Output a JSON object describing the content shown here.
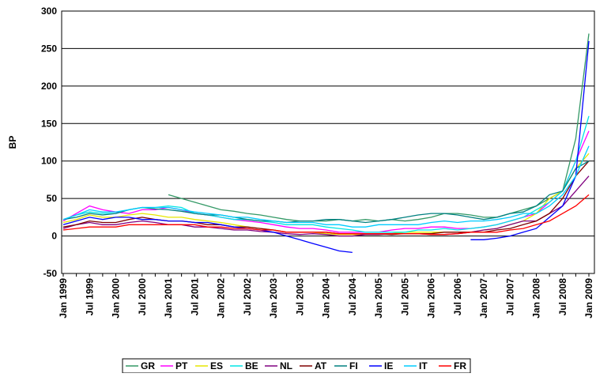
{
  "chart_data": {
    "type": "line",
    "y_label": "BP",
    "categories": [
      "Jan 1999",
      null,
      "Jul 1999",
      null,
      "Jan 2000",
      null,
      "Jul 2000",
      null,
      "Jan 2001",
      null,
      "Jul 2001",
      null,
      "Jan 2002",
      null,
      "Jul 2002",
      null,
      "Jan 2003",
      null,
      "Jul 2003",
      null,
      "Jan 2004",
      null,
      "Jul 2004",
      null,
      "Jan 2005",
      null,
      "Jul 2005",
      null,
      "Jan 2006",
      null,
      "Jul 2006",
      null,
      "Jan 2007",
      null,
      "Jul 2007",
      null,
      "Jan 2008",
      null,
      "Jul 2008",
      null,
      "Jan 2009"
    ],
    "ylim": [
      -50,
      300
    ],
    "yticks": [
      -50,
      0,
      50,
      100,
      150,
      200,
      250,
      300
    ],
    "grid": true,
    "series": [
      {
        "name": "GR",
        "color": "#339966",
        "values": [
          null,
          null,
          null,
          null,
          null,
          null,
          null,
          null,
          55,
          50,
          45,
          40,
          35,
          33,
          30,
          28,
          25,
          22,
          20,
          20,
          20,
          22,
          20,
          22,
          20,
          22,
          20,
          22,
          25,
          30,
          30,
          28,
          25,
          25,
          30,
          35,
          40,
          50,
          60,
          130,
          270
        ]
      },
      {
        "name": "PT",
        "color": "#ff00ff",
        "values": [
          20,
          30,
          40,
          35,
          32,
          30,
          35,
          35,
          38,
          35,
          30,
          28,
          25,
          22,
          20,
          18,
          15,
          12,
          10,
          10,
          8,
          5,
          5,
          5,
          5,
          8,
          10,
          10,
          12,
          12,
          10,
          10,
          12,
          15,
          20,
          25,
          30,
          45,
          60,
          100,
          140
        ]
      },
      {
        "name": "ES",
        "color": "#e6e600",
        "values": [
          18,
          22,
          28,
          25,
          25,
          28,
          30,
          28,
          25,
          25,
          22,
          20,
          18,
          15,
          12,
          10,
          8,
          5,
          5,
          5,
          3,
          2,
          2,
          2,
          2,
          3,
          5,
          5,
          5,
          5,
          5,
          5,
          8,
          10,
          15,
          20,
          30,
          50,
          60,
          90,
          110
        ]
      },
      {
        "name": "BE",
        "color": "#00e5e5",
        "values": [
          22,
          28,
          32,
          30,
          30,
          35,
          38,
          38,
          40,
          38,
          30,
          28,
          25,
          22,
          22,
          20,
          18,
          15,
          15,
          15,
          12,
          10,
          8,
          5,
          5,
          5,
          5,
          8,
          8,
          10,
          8,
          10,
          12,
          15,
          20,
          25,
          35,
          45,
          60,
          100,
          160
        ]
      },
      {
        "name": "NL",
        "color": "#800080",
        "values": [
          10,
          15,
          18,
          15,
          15,
          18,
          20,
          18,
          15,
          15,
          12,
          12,
          10,
          8,
          8,
          6,
          5,
          3,
          2,
          3,
          2,
          0,
          0,
          2,
          2,
          3,
          3,
          3,
          2,
          2,
          3,
          5,
          8,
          10,
          15,
          20,
          20,
          30,
          40,
          60,
          80
        ]
      },
      {
        "name": "AT",
        "color": "#800000",
        "values": [
          12,
          15,
          20,
          18,
          18,
          22,
          25,
          22,
          20,
          20,
          18,
          15,
          15,
          12,
          12,
          10,
          8,
          5,
          5,
          5,
          5,
          3,
          3,
          3,
          3,
          2,
          3,
          3,
          3,
          5,
          5,
          5,
          5,
          8,
          10,
          15,
          20,
          30,
          50,
          80,
          100
        ]
      },
      {
        "name": "FI",
        "color": "#008080",
        "values": [
          22,
          25,
          30,
          28,
          30,
          35,
          38,
          36,
          35,
          33,
          30,
          28,
          28,
          25,
          22,
          20,
          20,
          18,
          20,
          20,
          22,
          22,
          20,
          18,
          20,
          22,
          25,
          28,
          30,
          30,
          28,
          25,
          22,
          25,
          30,
          32,
          40,
          55,
          60,
          90,
          100
        ]
      },
      {
        "name": "IE",
        "color": "#0000ff",
        "values": [
          15,
          20,
          25,
          22,
          25,
          25,
          22,
          22,
          20,
          20,
          18,
          18,
          15,
          12,
          10,
          8,
          5,
          0,
          -5,
          -10,
          -15,
          -20,
          -22,
          null,
          null,
          null,
          null,
          null,
          null,
          null,
          null,
          -5,
          -5,
          -3,
          0,
          5,
          10,
          25,
          40,
          80,
          260
        ]
      },
      {
        "name": "IT",
        "color": "#00ccff",
        "values": [
          22,
          28,
          35,
          32,
          32,
          35,
          38,
          38,
          38,
          35,
          32,
          30,
          28,
          25,
          25,
          22,
          20,
          18,
          18,
          18,
          15,
          15,
          12,
          12,
          15,
          15,
          15,
          15,
          18,
          20,
          18,
          20,
          20,
          22,
          25,
          30,
          30,
          40,
          55,
          80,
          120
        ]
      },
      {
        "name": "FR",
        "color": "#ff0000",
        "values": [
          8,
          10,
          12,
          12,
          12,
          15,
          15,
          15,
          15,
          15,
          15,
          12,
          12,
          10,
          10,
          8,
          8,
          5,
          5,
          5,
          5,
          3,
          3,
          3,
          3,
          3,
          3,
          3,
          2,
          2,
          3,
          5,
          5,
          5,
          8,
          10,
          15,
          20,
          30,
          40,
          55
        ]
      }
    ]
  }
}
